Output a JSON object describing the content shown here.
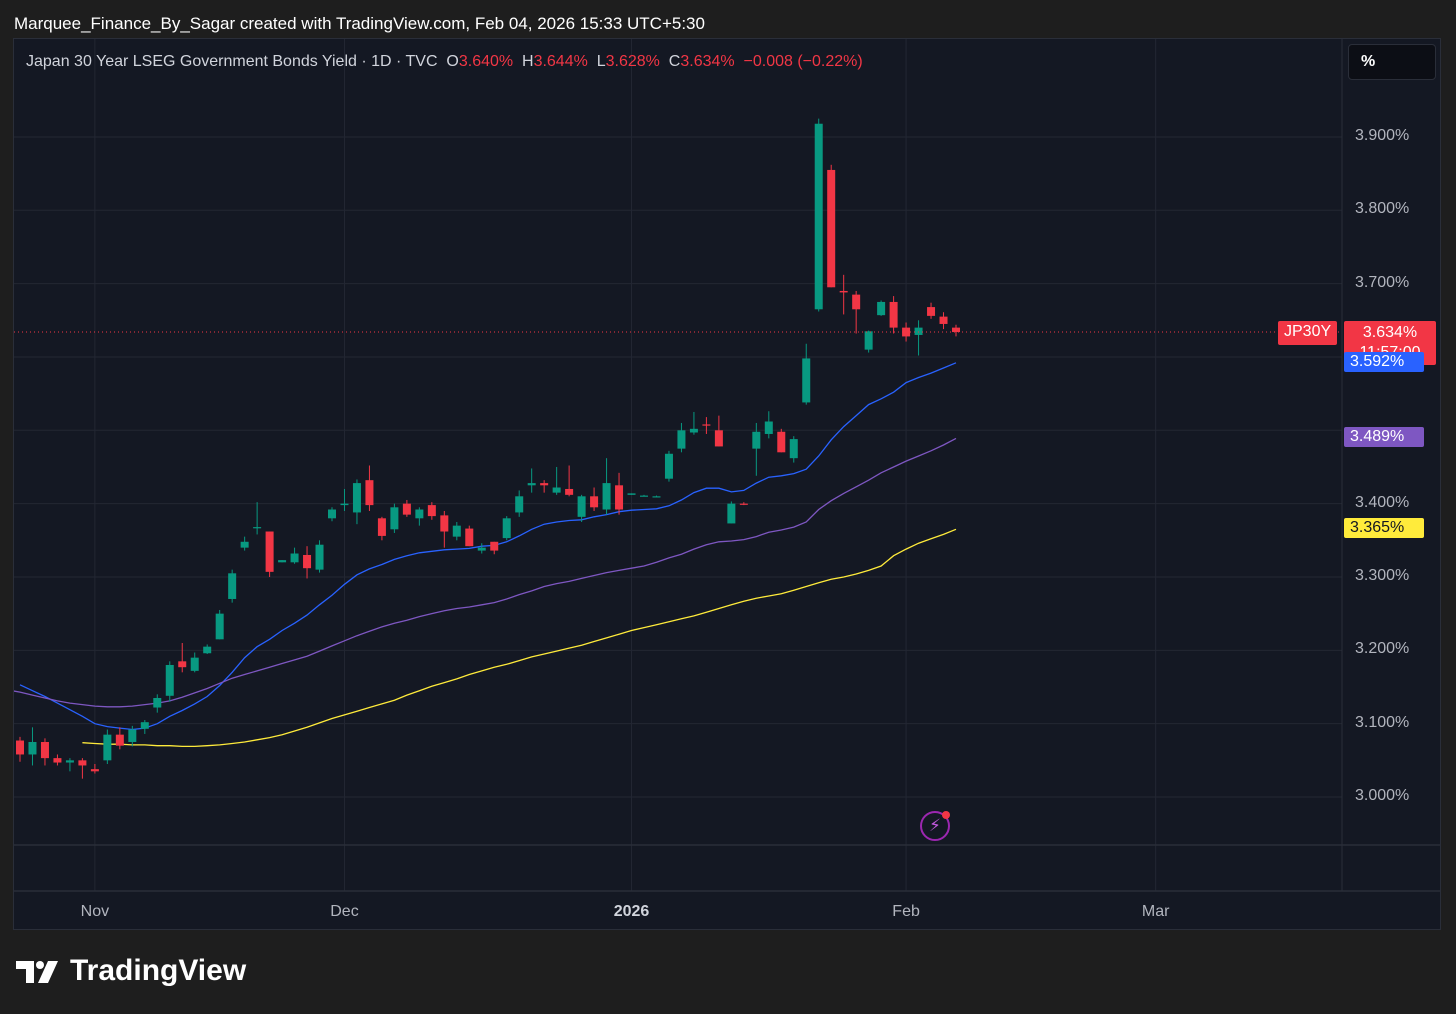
{
  "caption": "Marquee_Finance_By_Sagar created with TradingView.com, Feb 04, 2026 15:33 UTC+5:30",
  "legend": {
    "title": "Japan 30 Year LSEG Government Bonds Yield · 1D · TVC",
    "o_label": "O",
    "o_value": "3.640%",
    "h_label": "H",
    "h_value": "3.644%",
    "l_label": "L",
    "l_value": "3.628%",
    "c_label": "C",
    "c_value": "3.634%",
    "change": "−0.008 (−0.22%)"
  },
  "scale_button": "%",
  "symbol_tag": "JP30Y",
  "price_label": "3.634%",
  "countdown": "11:57:00",
  "ma_labels": [
    "3.592%",
    "3.489%",
    "3.365%"
  ],
  "brand": "TradingView",
  "colors": {
    "up": "#089981",
    "down": "#f23645",
    "ma_fast": "#2962ff",
    "ma_mid": "#7e57c2",
    "ma_slow": "#ffeb3b",
    "background": "#141823"
  },
  "icons": [
    "lightning-icon",
    "tradingview-logo-icon"
  ],
  "chart_data": {
    "type": "candlestick",
    "title": "Japan 30 Year LSEG Government Bonds Yield · 1D · TVC",
    "ylabel": "%",
    "ylim": [
      2.935,
      3.99
    ],
    "y_ticks": [
      "3.000%",
      "3.100%",
      "3.200%",
      "3.300%",
      "3.400%",
      "3.700%",
      "3.800%",
      "3.900%"
    ],
    "y_tick_values": [
      3.0,
      3.1,
      3.2,
      3.3,
      3.4,
      3.7,
      3.8,
      3.9
    ],
    "x_ticks": [
      {
        "label": "Nov",
        "bar": 6,
        "major": false
      },
      {
        "label": "Dec",
        "bar": 26,
        "major": false
      },
      {
        "label": "2026",
        "bar": 49,
        "major": true
      },
      {
        "label": "Feb",
        "bar": 71,
        "major": false
      },
      {
        "label": "Mar",
        "bar": 91,
        "major": false
      }
    ],
    "last_price": 3.634,
    "candles": [
      [
        3.077,
        3.082,
        3.048,
        3.058
      ],
      [
        3.058,
        3.095,
        3.043,
        3.075
      ],
      [
        3.075,
        3.08,
        3.043,
        3.053
      ],
      [
        3.053,
        3.058,
        3.043,
        3.047
      ],
      [
        3.047,
        3.053,
        3.035,
        3.05
      ],
      [
        3.05,
        3.053,
        3.025,
        3.043
      ],
      [
        3.038,
        3.045,
        3.032,
        3.035
      ],
      [
        3.05,
        3.092,
        3.045,
        3.085
      ],
      [
        3.085,
        3.095,
        3.065,
        3.07
      ],
      [
        3.075,
        3.097,
        3.069,
        3.092
      ],
      [
        3.093,
        3.105,
        3.086,
        3.102
      ],
      [
        3.122,
        3.14,
        3.115,
        3.135
      ],
      [
        3.138,
        3.185,
        3.13,
        3.18
      ],
      [
        3.185,
        3.21,
        3.17,
        3.177
      ],
      [
        3.172,
        3.197,
        3.17,
        3.19
      ],
      [
        3.196,
        3.208,
        3.195,
        3.205
      ],
      [
        3.215,
        3.255,
        3.215,
        3.25
      ],
      [
        3.27,
        3.31,
        3.265,
        3.305
      ],
      [
        3.34,
        3.355,
        3.336,
        3.348
      ],
      [
        3.368,
        3.402,
        3.358,
        3.368
      ],
      [
        3.362,
        3.362,
        3.3,
        3.307
      ],
      [
        3.32,
        3.323,
        3.32,
        3.323
      ],
      [
        3.32,
        3.34,
        3.318,
        3.332
      ],
      [
        3.33,
        3.342,
        3.298,
        3.312
      ],
      [
        3.31,
        3.35,
        3.306,
        3.344
      ],
      [
        3.38,
        3.395,
        3.376,
        3.392
      ],
      [
        3.398,
        3.42,
        3.39,
        3.4
      ],
      [
        3.388,
        3.433,
        3.372,
        3.428
      ],
      [
        3.432,
        3.452,
        3.39,
        3.398
      ],
      [
        3.38,
        3.382,
        3.35,
        3.356
      ],
      [
        3.365,
        3.4,
        3.36,
        3.395
      ],
      [
        3.4,
        3.405,
        3.382,
        3.385
      ],
      [
        3.38,
        3.395,
        3.37,
        3.392
      ],
      [
        3.398,
        3.402,
        3.378,
        3.383
      ],
      [
        3.384,
        3.39,
        3.34,
        3.362
      ],
      [
        3.355,
        3.375,
        3.35,
        3.37
      ],
      [
        3.366,
        3.37,
        3.342,
        3.342
      ],
      [
        3.336,
        3.346,
        3.332,
        3.34
      ],
      [
        3.348,
        3.348,
        3.331,
        3.336
      ],
      [
        3.353,
        3.383,
        3.35,
        3.38
      ],
      [
        3.388,
        3.418,
        3.382,
        3.41
      ],
      [
        3.425,
        3.448,
        3.415,
        3.428
      ],
      [
        3.428,
        3.432,
        3.415,
        3.425
      ],
      [
        3.415,
        3.45,
        3.412,
        3.422
      ],
      [
        3.42,
        3.452,
        3.41,
        3.412
      ],
      [
        3.382,
        3.412,
        3.375,
        3.41
      ],
      [
        3.41,
        3.422,
        3.39,
        3.395
      ],
      [
        3.392,
        3.462,
        3.385,
        3.428
      ],
      [
        3.425,
        3.442,
        3.385,
        3.392
      ],
      [
        3.412,
        3.414,
        3.412,
        3.414
      ],
      [
        3.411,
        3.412,
        3.41,
        3.411
      ],
      [
        3.41,
        3.411,
        3.409,
        3.41
      ],
      [
        3.434,
        3.472,
        3.43,
        3.468
      ],
      [
        3.475,
        3.51,
        3.47,
        3.5
      ],
      [
        3.497,
        3.525,
        3.494,
        3.502
      ],
      [
        3.508,
        3.518,
        3.495,
        3.507
      ],
      [
        3.5,
        3.52,
        3.478,
        3.478
      ],
      [
        3.373,
        3.403,
        3.373,
        3.4
      ],
      [
        3.4,
        3.402,
        3.398,
        3.399
      ],
      [
        3.475,
        3.51,
        3.438,
        3.498
      ],
      [
        3.495,
        3.526,
        3.489,
        3.512
      ],
      [
        3.498,
        3.502,
        3.47,
        3.47
      ],
      [
        3.462,
        3.492,
        3.456,
        3.488
      ],
      [
        3.538,
        3.618,
        3.535,
        3.598
      ],
      [
        3.665,
        3.925,
        3.662,
        3.918
      ],
      [
        3.855,
        3.862,
        3.695,
        3.695
      ],
      [
        3.69,
        3.712,
        3.658,
        3.688
      ],
      [
        3.685,
        3.69,
        3.632,
        3.665
      ],
      [
        3.61,
        3.636,
        3.606,
        3.635
      ],
      [
        3.657,
        3.677,
        3.656,
        3.675
      ],
      [
        3.675,
        3.683,
        3.632,
        3.64
      ],
      [
        3.64,
        3.647,
        3.621,
        3.628
      ],
      [
        3.63,
        3.65,
        3.602,
        3.64
      ],
      [
        3.668,
        3.674,
        3.652,
        3.656
      ],
      [
        3.655,
        3.661,
        3.638,
        3.645
      ],
      [
        3.64,
        3.644,
        3.628,
        3.634
      ]
    ],
    "series": [
      {
        "values": [
          3.153,
          3.145,
          3.137,
          3.128,
          3.119,
          3.11,
          3.1,
          3.096,
          3.094,
          3.092,
          3.094,
          3.1,
          3.11,
          3.118,
          3.127,
          3.137,
          3.152,
          3.17,
          3.19,
          3.205,
          3.215,
          3.227,
          3.237,
          3.248,
          3.262,
          3.275,
          3.29,
          3.303,
          3.311,
          3.317,
          3.324,
          3.329,
          3.333,
          3.335,
          3.337,
          3.338,
          3.339,
          3.342,
          3.343,
          3.348,
          3.356,
          3.365,
          3.372,
          3.375,
          3.377,
          3.378,
          3.382,
          3.385,
          3.389,
          3.391,
          3.392,
          3.393,
          3.397,
          3.405,
          3.415,
          3.421,
          3.421,
          3.416,
          3.418,
          3.428,
          3.436,
          3.438,
          3.441,
          3.447,
          3.465,
          3.487,
          3.505,
          3.52,
          3.535,
          3.543,
          3.552,
          3.565,
          3.572,
          3.578,
          3.585,
          3.592
        ]
      },
      {
        "values": [
          3.15,
          3.146,
          3.143,
          3.139,
          3.135,
          3.131,
          3.128,
          3.126,
          3.124,
          3.123,
          3.123,
          3.124,
          3.126,
          3.128,
          3.131,
          3.136,
          3.142,
          3.148,
          3.155,
          3.162,
          3.167,
          3.172,
          3.177,
          3.182,
          3.187,
          3.192,
          3.199,
          3.206,
          3.213,
          3.22,
          3.226,
          3.232,
          3.237,
          3.241,
          3.246,
          3.25,
          3.254,
          3.257,
          3.259,
          3.262,
          3.265,
          3.27,
          3.276,
          3.281,
          3.287,
          3.291,
          3.294,
          3.298,
          3.302,
          3.306,
          3.309,
          3.312,
          3.315,
          3.32,
          3.326,
          3.331,
          3.338,
          3.344,
          3.348,
          3.349,
          3.351,
          3.355,
          3.361,
          3.364,
          3.368,
          3.375,
          3.392,
          3.404,
          3.414,
          3.423,
          3.432,
          3.442,
          3.45,
          3.458,
          3.465,
          3.472,
          3.48,
          3.489
        ]
      },
      {
        "values": [
          3.074,
          3.073,
          3.072,
          3.072,
          3.071,
          3.071,
          3.07,
          3.07,
          3.069,
          3.069,
          3.07,
          3.071,
          3.073,
          3.075,
          3.078,
          3.081,
          3.085,
          3.09,
          3.095,
          3.101,
          3.107,
          3.112,
          3.117,
          3.122,
          3.127,
          3.132,
          3.139,
          3.145,
          3.151,
          3.156,
          3.161,
          3.167,
          3.172,
          3.177,
          3.181,
          3.186,
          3.191,
          3.195,
          3.199,
          3.203,
          3.207,
          3.212,
          3.217,
          3.222,
          3.227,
          3.231,
          3.235,
          3.239,
          3.243,
          3.247,
          3.252,
          3.257,
          3.262,
          3.267,
          3.271,
          3.274,
          3.277,
          3.282,
          3.287,
          3.292,
          3.297,
          3.3,
          3.304,
          3.309,
          3.315,
          3.329,
          3.338,
          3.346,
          3.352,
          3.358,
          3.365
        ]
      }
    ]
  }
}
